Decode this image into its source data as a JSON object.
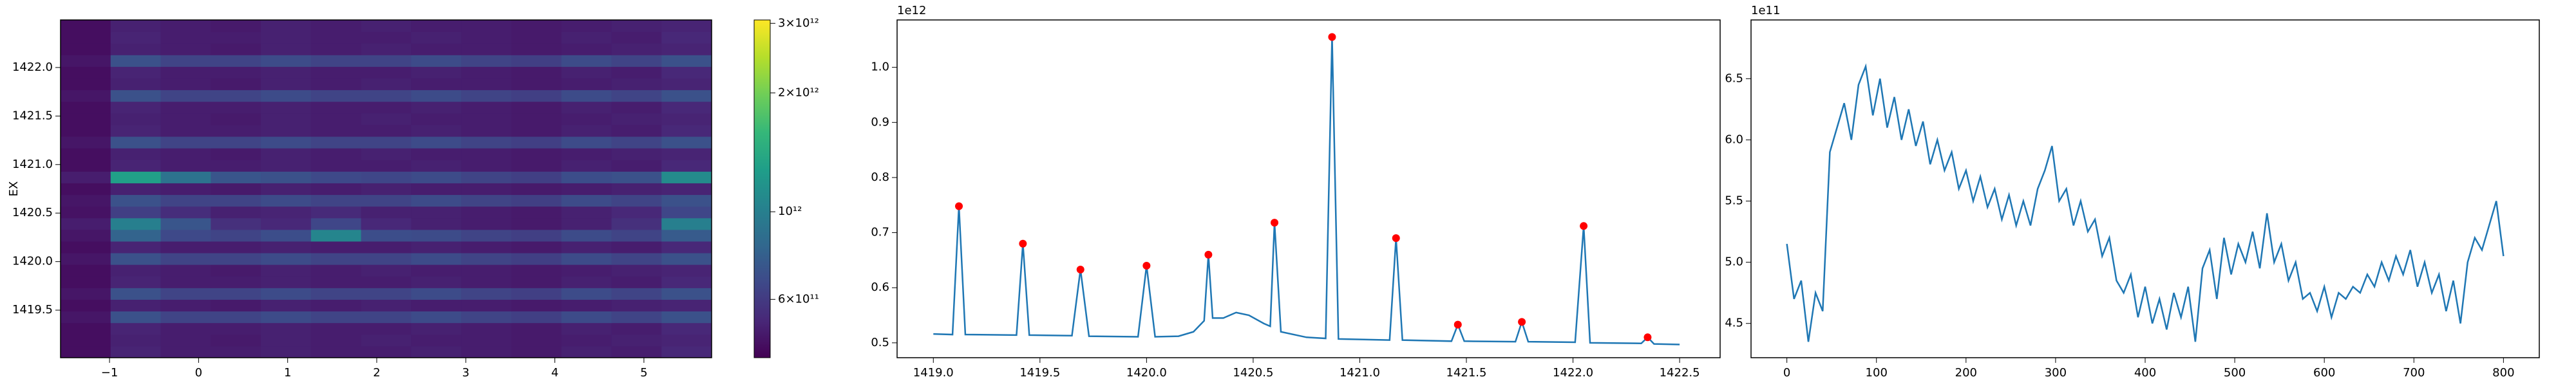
{
  "chart_data": [
    {
      "type": "heatmap",
      "ylabel": "EX",
      "colormap": "viridis",
      "xlim": [
        -1.55,
        5.76
      ],
      "ylim": [
        1419.01,
        1422.49
      ],
      "xticks": [
        {
          "value": -1,
          "label": "−1"
        },
        0,
        1,
        2,
        3,
        4,
        5
      ],
      "yticks": [
        1419.5,
        {
          "value": 1420,
          "label": "1420.0"
        },
        1420.5,
        {
          "value": 1421,
          "label": "1421.0"
        },
        1421.5,
        {
          "value": 1422,
          "label": "1422.0"
        }
      ],
      "z": [
        [
          460000000000.0,
          520000000000.0,
          500000000000.0,
          500000000000.0,
          510000000000.0,
          500000000000.0,
          500000000000.0,
          510000000000.0,
          500000000000.0,
          490000000000.0,
          510000000000.0,
          500000000000.0,
          530000000000.0
        ],
        [
          460000000000.0,
          510000000000.0,
          500000000000.0,
          490000000000.0,
          510000000000.0,
          500000000000.0,
          510000000000.0,
          500000000000.0,
          500000000000.0,
          490000000000.0,
          500000000000.0,
          510000000000.0,
          520000000000.0
        ],
        [
          460000000000.0,
          520000000000.0,
          500000000000.0,
          500000000000.0,
          510000000000.0,
          500000000000.0,
          500000000000.0,
          510000000000.0,
          500000000000.0,
          490000000000.0,
          510000000000.0,
          500000000000.0,
          530000000000.0
        ],
        [
          480000000000.0,
          700000000000.0,
          640000000000.0,
          640000000000.0,
          670000000000.0,
          640000000000.0,
          640000000000.0,
          670000000000.0,
          640000000000.0,
          620000000000.0,
          670000000000.0,
          640000000000.0,
          700000000000.0
        ],
        [
          460000000000.0,
          510000000000.0,
          500000000000.0,
          490000000000.0,
          510000000000.0,
          500000000000.0,
          510000000000.0,
          500000000000.0,
          500000000000.0,
          490000000000.0,
          500000000000.0,
          510000000000.0,
          520000000000.0
        ],
        [
          480000000000.0,
          700000000000.0,
          640000000000.0,
          640000000000.0,
          670000000000.0,
          640000000000.0,
          640000000000.0,
          670000000000.0,
          640000000000.0,
          620000000000.0,
          670000000000.0,
          640000000000.0,
          700000000000.0
        ],
        [
          460000000000.0,
          520000000000.0,
          500000000000.0,
          500000000000.0,
          510000000000.0,
          500000000000.0,
          500000000000.0,
          510000000000.0,
          500000000000.0,
          490000000000.0,
          510000000000.0,
          500000000000.0,
          530000000000.0
        ],
        [
          460000000000.0,
          510000000000.0,
          500000000000.0,
          490000000000.0,
          510000000000.0,
          500000000000.0,
          510000000000.0,
          500000000000.0,
          500000000000.0,
          490000000000.0,
          500000000000.0,
          510000000000.0,
          520000000000.0
        ],
        [
          480000000000.0,
          700000000000.0,
          640000000000.0,
          640000000000.0,
          670000000000.0,
          640000000000.0,
          640000000000.0,
          670000000000.0,
          640000000000.0,
          620000000000.0,
          670000000000.0,
          640000000000.0,
          700000000000.0
        ],
        [
          460000000000.0,
          520000000000.0,
          500000000000.0,
          500000000000.0,
          510000000000.0,
          500000000000.0,
          500000000000.0,
          510000000000.0,
          500000000000.0,
          490000000000.0,
          510000000000.0,
          500000000000.0,
          530000000000.0
        ],
        [
          480000000000.0,
          800000000000.0,
          660000000000.0,
          640000000000.0,
          680000000000.0,
          1050000000000.0,
          680000000000.0,
          670000000000.0,
          640000000000.0,
          620000000000.0,
          670000000000.0,
          640000000000.0,
          750000000000.0
        ],
        [
          500000000000.0,
          1000000000000.0,
          720000000000.0,
          560000000000.0,
          530000000000.0,
          650000000000.0,
          530000000000.0,
          510000000000.0,
          500000000000.0,
          490000000000.0,
          510000000000.0,
          560000000000.0,
          1000000000000.0
        ],
        [
          470000000000.0,
          620000000000.0,
          550000000000.0,
          510000000000.0,
          520000000000.0,
          540000000000.0,
          510000000000.0,
          510000000000.0,
          500000000000.0,
          490000000000.0,
          510000000000.0,
          530000000000.0,
          650000000000.0
        ],
        [
          480000000000.0,
          700000000000.0,
          640000000000.0,
          640000000000.0,
          670000000000.0,
          640000000000.0,
          640000000000.0,
          670000000000.0,
          640000000000.0,
          620000000000.0,
          670000000000.0,
          640000000000.0,
          700000000000.0
        ],
        [
          460000000000.0,
          510000000000.0,
          500000000000.0,
          490000000000.0,
          510000000000.0,
          500000000000.0,
          510000000000.0,
          500000000000.0,
          500000000000.0,
          490000000000.0,
          500000000000.0,
          510000000000.0,
          520000000000.0
        ],
        [
          500000000000.0,
          1300000000000.0,
          900000000000.0,
          720000000000.0,
          700000000000.0,
          660000000000.0,
          650000000000.0,
          670000000000.0,
          640000000000.0,
          620000000000.0,
          680000000000.0,
          700000000000.0,
          1100000000000.0
        ],
        [
          460000000000.0,
          520000000000.0,
          500000000000.0,
          500000000000.0,
          510000000000.0,
          500000000000.0,
          500000000000.0,
          510000000000.0,
          500000000000.0,
          490000000000.0,
          510000000000.0,
          500000000000.0,
          530000000000.0
        ],
        [
          460000000000.0,
          510000000000.0,
          500000000000.0,
          490000000000.0,
          510000000000.0,
          500000000000.0,
          510000000000.0,
          500000000000.0,
          500000000000.0,
          490000000000.0,
          500000000000.0,
          510000000000.0,
          520000000000.0
        ],
        [
          480000000000.0,
          700000000000.0,
          640000000000.0,
          640000000000.0,
          670000000000.0,
          640000000000.0,
          640000000000.0,
          670000000000.0,
          640000000000.0,
          620000000000.0,
          670000000000.0,
          640000000000.0,
          700000000000.0
        ],
        [
          460000000000.0,
          520000000000.0,
          500000000000.0,
          500000000000.0,
          510000000000.0,
          500000000000.0,
          500000000000.0,
          510000000000.0,
          500000000000.0,
          490000000000.0,
          510000000000.0,
          500000000000.0,
          530000000000.0
        ],
        [
          460000000000.0,
          510000000000.0,
          500000000000.0,
          490000000000.0,
          510000000000.0,
          500000000000.0,
          510000000000.0,
          500000000000.0,
          500000000000.0,
          490000000000.0,
          500000000000.0,
          510000000000.0,
          520000000000.0
        ],
        [
          460000000000.0,
          520000000000.0,
          500000000000.0,
          500000000000.0,
          510000000000.0,
          500000000000.0,
          500000000000.0,
          510000000000.0,
          500000000000.0,
          490000000000.0,
          510000000000.0,
          500000000000.0,
          530000000000.0
        ],
        [
          480000000000.0,
          700000000000.0,
          640000000000.0,
          640000000000.0,
          670000000000.0,
          640000000000.0,
          640000000000.0,
          670000000000.0,
          640000000000.0,
          620000000000.0,
          670000000000.0,
          640000000000.0,
          700000000000.0
        ],
        [
          460000000000.0,
          510000000000.0,
          500000000000.0,
          490000000000.0,
          510000000000.0,
          500000000000.0,
          510000000000.0,
          500000000000.0,
          500000000000.0,
          490000000000.0,
          500000000000.0,
          510000000000.0,
          520000000000.0
        ],
        [
          460000000000.0,
          520000000000.0,
          500000000000.0,
          500000000000.0,
          510000000000.0,
          500000000000.0,
          500000000000.0,
          510000000000.0,
          500000000000.0,
          490000000000.0,
          510000000000.0,
          500000000000.0,
          530000000000.0
        ],
        [
          480000000000.0,
          700000000000.0,
          640000000000.0,
          640000000000.0,
          670000000000.0,
          640000000000.0,
          640000000000.0,
          670000000000.0,
          640000000000.0,
          620000000000.0,
          670000000000.0,
          640000000000.0,
          700000000000.0
        ],
        [
          460000000000.0,
          510000000000.0,
          500000000000.0,
          490000000000.0,
          510000000000.0,
          500000000000.0,
          510000000000.0,
          500000000000.0,
          500000000000.0,
          490000000000.0,
          500000000000.0,
          510000000000.0,
          520000000000.0
        ],
        [
          460000000000.0,
          520000000000.0,
          500000000000.0,
          500000000000.0,
          510000000000.0,
          500000000000.0,
          500000000000.0,
          510000000000.0,
          500000000000.0,
          490000000000.0,
          510000000000.0,
          500000000000.0,
          530000000000.0
        ],
        [
          460000000000.0,
          510000000000.0,
          500000000000.0,
          490000000000.0,
          510000000000.0,
          500000000000.0,
          510000000000.0,
          500000000000.0,
          500000000000.0,
          490000000000.0,
          500000000000.0,
          510000000000.0,
          520000000000.0
        ]
      ],
      "colorbar": {
        "scale": "log",
        "lim": [
          427000000000.0,
          3060000000000.0
        ],
        "ticks": [
          {
            "value": 600000000000.0,
            "label": "6×10¹¹"
          },
          {
            "value": 1000000000000.0,
            "label": "10¹²"
          },
          {
            "value": 2000000000000.0,
            "label": "2×10¹²"
          },
          {
            "value": 3000000000000.0,
            "label": "3×10¹²"
          }
        ]
      }
    },
    {
      "type": "line",
      "offset_label": "1e12",
      "xlim": [
        1418.83,
        1422.69
      ],
      "ylim": [
        0.473,
        1.086
      ],
      "xticks": [
        {
          "value": 1419,
          "label": "1419.0"
        },
        1419.5,
        {
          "value": 1420,
          "label": "1420.0"
        },
        1420.5,
        {
          "value": 1421,
          "label": "1421.0"
        },
        1421.5,
        {
          "value": 1422,
          "label": "1422.0"
        },
        1422.5
      ],
      "yticks": [
        0.5,
        0.6,
        0.7,
        0.8,
        0.9,
        {
          "value": 1,
          "label": "1.0"
        }
      ],
      "series": [
        {
          "kind": "line",
          "color": "#1f77b4",
          "x": [
            1419.0,
            1419.09,
            1419.12,
            1419.15,
            1419.39,
            1419.42,
            1419.45,
            1419.65,
            1419.69,
            1419.73,
            1419.96,
            1420.0,
            1420.04,
            1420.15,
            1420.22,
            1420.27,
            1420.29,
            1420.31,
            1420.36,
            1420.42,
            1420.48,
            1420.55,
            1420.58,
            1420.6,
            1420.63,
            1420.75,
            1420.84,
            1420.87,
            1420.9,
            1421.14,
            1421.17,
            1421.2,
            1421.43,
            1421.46,
            1421.49,
            1421.73,
            1421.76,
            1421.79,
            1422.01,
            1422.05,
            1422.08,
            1422.32,
            1422.35,
            1422.38,
            1422.5
          ],
          "values": [
            0.516,
            0.515,
            0.748,
            0.515,
            0.514,
            0.68,
            0.514,
            0.513,
            0.633,
            0.512,
            0.511,
            0.64,
            0.511,
            0.512,
            0.52,
            0.54,
            0.66,
            0.545,
            0.545,
            0.555,
            0.55,
            0.535,
            0.53,
            0.718,
            0.52,
            0.51,
            0.508,
            1.055,
            0.507,
            0.505,
            0.69,
            0.505,
            0.503,
            0.533,
            0.503,
            0.502,
            0.538,
            0.502,
            0.501,
            0.712,
            0.5,
            0.499,
            0.51,
            0.498,
            0.497
          ]
        },
        {
          "kind": "scatter",
          "color": "#ff0000",
          "x": [
            1419.12,
            1419.42,
            1419.69,
            1420.0,
            1420.29,
            1420.6,
            1420.87,
            1421.17,
            1421.46,
            1421.76,
            1422.05,
            1422.35
          ],
          "values": [
            0.748,
            0.68,
            0.633,
            0.64,
            0.66,
            0.718,
            1.055,
            0.69,
            0.533,
            0.538,
            0.712,
            0.51
          ]
        }
      ]
    },
    {
      "type": "line",
      "offset_label": "1e11",
      "xlim": [
        -40,
        840
      ],
      "ylim": [
        4.22,
        6.98
      ],
      "xticks": [
        0,
        100,
        200,
        300,
        400,
        500,
        600,
        700,
        800
      ],
      "yticks": [
        4.5,
        {
          "value": 5,
          "label": "5.0"
        },
        5.5,
        {
          "value": 6,
          "label": "6.0"
        },
        6.5
      ],
      "series": [
        {
          "kind": "line",
          "color": "#1f77b4",
          "x": [
            0,
            8,
            16,
            24,
            32,
            40,
            48,
            56,
            64,
            72,
            80,
            88,
            96,
            104,
            112,
            120,
            128,
            136,
            144,
            152,
            160,
            168,
            176,
            184,
            192,
            200,
            208,
            216,
            224,
            232,
            240,
            248,
            256,
            264,
            272,
            280,
            288,
            296,
            304,
            312,
            320,
            328,
            336,
            344,
            352,
            360,
            368,
            376,
            384,
            392,
            400,
            408,
            416,
            424,
            432,
            440,
            448,
            456,
            464,
            472,
            480,
            488,
            496,
            504,
            512,
            520,
            528,
            536,
            544,
            552,
            560,
            568,
            576,
            584,
            592,
            600,
            608,
            616,
            624,
            632,
            640,
            648,
            656,
            664,
            672,
            680,
            688,
            696,
            704,
            712,
            720,
            728,
            736,
            744,
            752,
            760,
            768,
            776,
            784,
            792,
            800
          ],
          "values": [
            5.15,
            4.7,
            4.85,
            4.35,
            4.75,
            4.6,
            5.9,
            6.1,
            6.3,
            6.0,
            6.45,
            6.6,
            6.2,
            6.5,
            6.1,
            6.35,
            6.0,
            6.25,
            5.95,
            6.15,
            5.8,
            6.0,
            5.75,
            5.9,
            5.6,
            5.75,
            5.5,
            5.7,
            5.45,
            5.6,
            5.35,
            5.55,
            5.3,
            5.5,
            5.3,
            5.6,
            5.75,
            5.95,
            5.5,
            5.6,
            5.3,
            5.5,
            5.25,
            5.35,
            5.05,
            5.2,
            4.85,
            4.75,
            4.9,
            4.55,
            4.8,
            4.5,
            4.7,
            4.45,
            4.75,
            4.55,
            4.8,
            4.35,
            4.95,
            5.1,
            4.7,
            5.2,
            4.9,
            5.15,
            5.0,
            5.25,
            4.95,
            5.4,
            5.0,
            5.15,
            4.85,
            5.0,
            4.7,
            4.75,
            4.6,
            4.8,
            4.55,
            4.75,
            4.7,
            4.8,
            4.75,
            4.9,
            4.8,
            5.0,
            4.85,
            5.05,
            4.9,
            5.1,
            4.8,
            5.0,
            4.75,
            4.9,
            4.6,
            4.85,
            4.5,
            5.0,
            5.2,
            5.1,
            5.3,
            5.5,
            5.05
          ]
        }
      ]
    }
  ]
}
